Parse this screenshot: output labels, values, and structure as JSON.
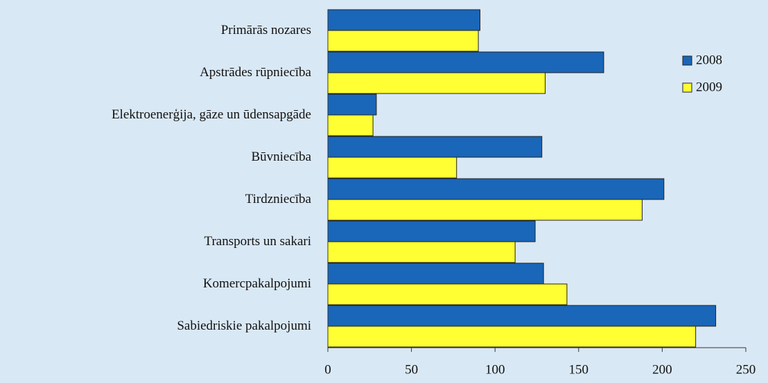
{
  "chart_data": {
    "type": "bar",
    "orientation": "horizontal",
    "categories": [
      "Primārās nozares",
      "Apstrādes rūpniecība",
      "Elektroenerģija, gāze un ūdensapgāde",
      "Būvniecība",
      "Tirdzniecība",
      "Transports un sakari",
      "Komercpakalpojumi",
      "Sabiedriskie pakalpojumi"
    ],
    "series": [
      {
        "name": "2008",
        "color": "#1a66b8",
        "values": [
          91,
          165,
          29,
          128,
          201,
          124,
          129,
          232
        ]
      },
      {
        "name": "2009",
        "color": "#ffff33",
        "values": [
          90,
          130,
          27,
          77,
          188,
          112,
          143,
          220
        ]
      }
    ],
    "xlim": [
      0,
      250
    ],
    "xticks": [
      0,
      50,
      100,
      150,
      200,
      250
    ],
    "legend": "upper right"
  }
}
